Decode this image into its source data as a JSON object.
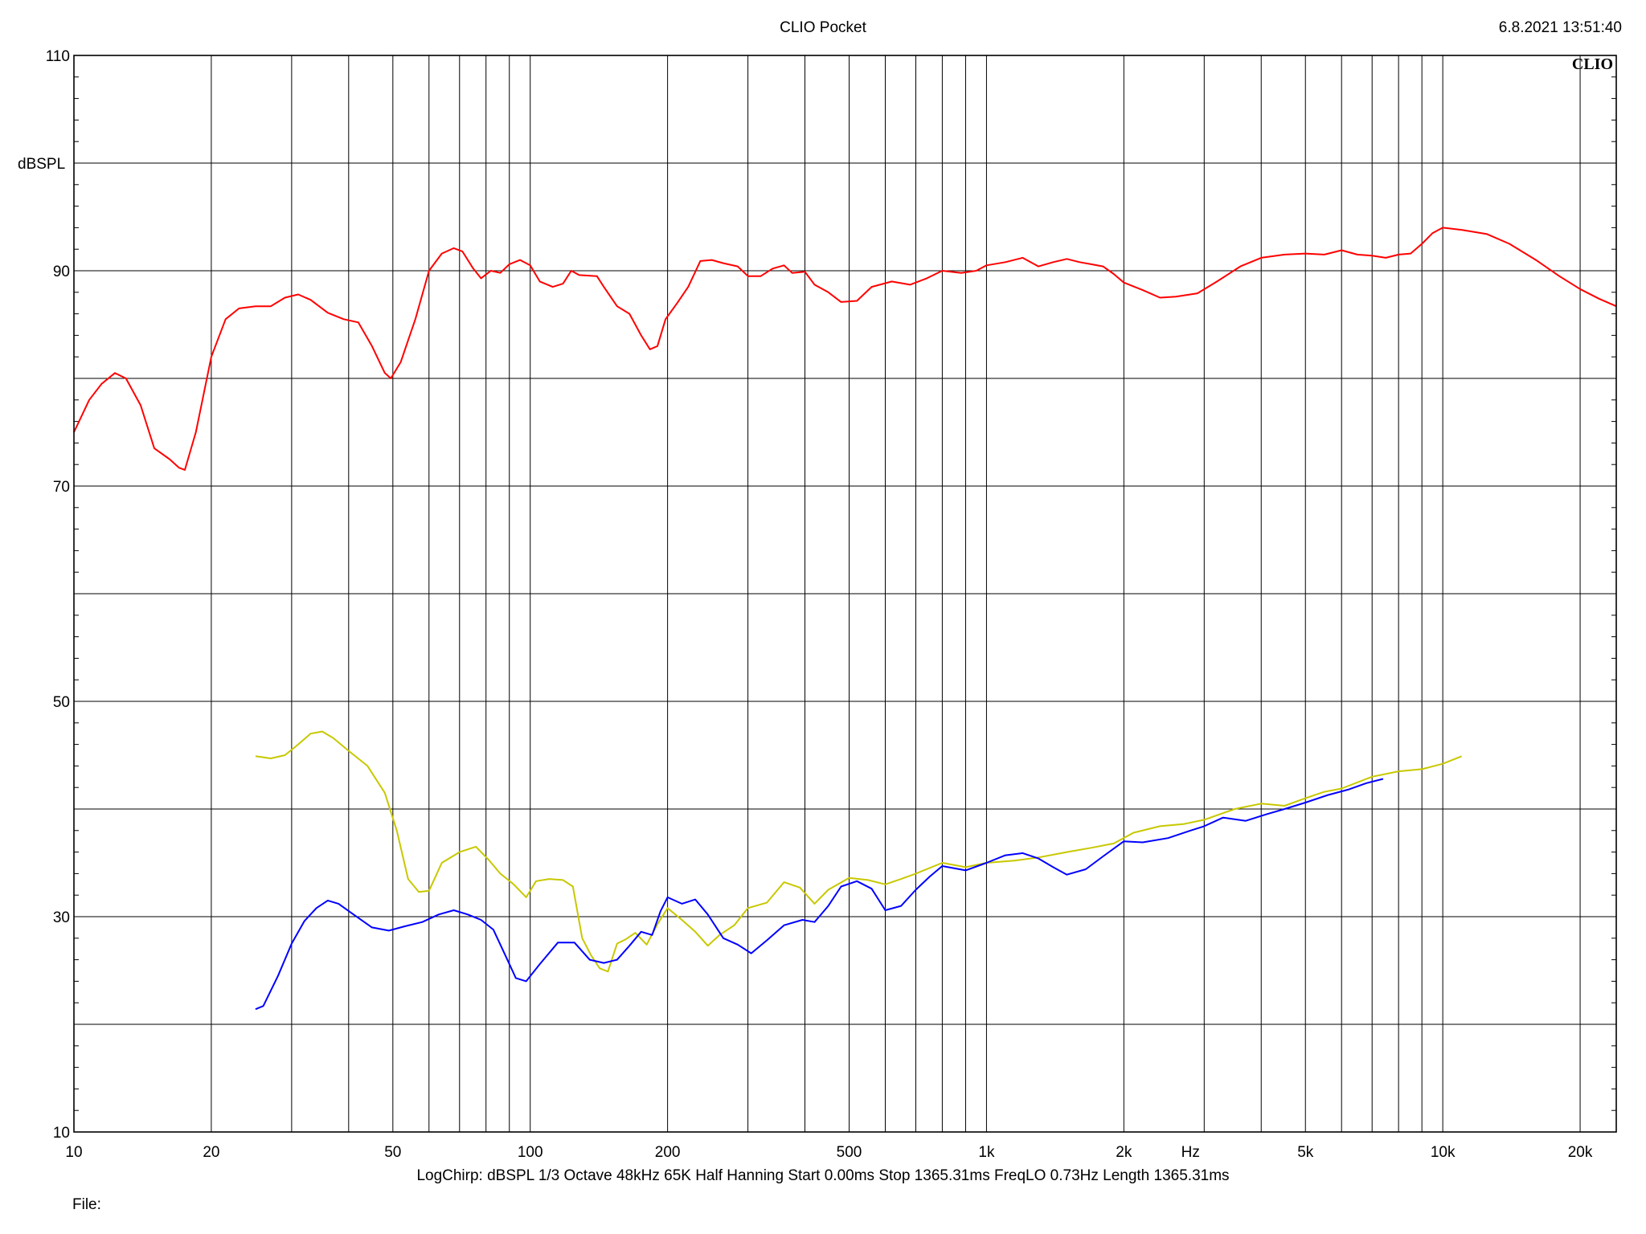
{
  "header": {
    "title": "CLIO Pocket",
    "timestamp": "6.8.2021 13:51:40"
  },
  "logo_text": "CLIO",
  "footer": {
    "settings": "LogChirp:  dBSPL   1/3 Octave   48kHz   65K   Half Hanning   Start 0.00ms   Stop 1365.31ms   FreqLO 0.73Hz   Length 1365.31ms",
    "file_label": "File:"
  },
  "chart_data": {
    "type": "line",
    "title": "CLIO Pocket",
    "xlabel": "Hz",
    "ylabel": "dBSPL",
    "x_scale": "log",
    "xlim": [
      10,
      24000
    ],
    "ylim": [
      10,
      110
    ],
    "y_ticks": [
      10,
      30,
      50,
      70,
      90,
      110
    ],
    "y_gridlines": [
      10,
      20,
      30,
      40,
      50,
      60,
      70,
      80,
      90,
      100,
      110
    ],
    "x_ticks": [
      {
        "value": 10,
        "label": "10"
      },
      {
        "value": 20,
        "label": "20"
      },
      {
        "value": 50,
        "label": "50"
      },
      {
        "value": 100,
        "label": "100"
      },
      {
        "value": 200,
        "label": "200"
      },
      {
        "value": 500,
        "label": "500"
      },
      {
        "value": 1000,
        "label": "1k"
      },
      {
        "value": 2000,
        "label": "2k"
      },
      {
        "value": 5000,
        "label": "5k"
      },
      {
        "value": 10000,
        "label": "10k"
      },
      {
        "value": 20000,
        "label": "20k"
      }
    ],
    "x_unit_label_position": 2800,
    "grid": true,
    "background": "#ffffff",
    "series": [
      {
        "color": "#ff0000",
        "points": [
          [
            10,
            75
          ],
          [
            10.8,
            78
          ],
          [
            11.5,
            79.5
          ],
          [
            12.3,
            80.5
          ],
          [
            13,
            80
          ],
          [
            14,
            77.5
          ],
          [
            15,
            73.5
          ],
          [
            16.2,
            72.5
          ],
          [
            17,
            71.7
          ],
          [
            17.5,
            71.5
          ],
          [
            18.5,
            75
          ],
          [
            20,
            82
          ],
          [
            21.5,
            85.5
          ],
          [
            23,
            86.5
          ],
          [
            25,
            86.7
          ],
          [
            27,
            86.7
          ],
          [
            29,
            87.5
          ],
          [
            31,
            87.8
          ],
          [
            33,
            87.3
          ],
          [
            36,
            86.1
          ],
          [
            39,
            85.5
          ],
          [
            42,
            85.2
          ],
          [
            45,
            83
          ],
          [
            48,
            80.5
          ],
          [
            49.5,
            80
          ],
          [
            52,
            81.5
          ],
          [
            56,
            85.5
          ],
          [
            60,
            90
          ],
          [
            64,
            91.6
          ],
          [
            68,
            92.1
          ],
          [
            71,
            91.8
          ],
          [
            75,
            90.2
          ],
          [
            78,
            89.3
          ],
          [
            82,
            90
          ],
          [
            86,
            89.8
          ],
          [
            90,
            90.6
          ],
          [
            95,
            91
          ],
          [
            100,
            90.5
          ],
          [
            105,
            89
          ],
          [
            112,
            88.5
          ],
          [
            118,
            88.8
          ],
          [
            123,
            90
          ],
          [
            128,
            89.6
          ],
          [
            140,
            89.5
          ],
          [
            145,
            88.5
          ],
          [
            155,
            86.7
          ],
          [
            165,
            86
          ],
          [
            175,
            84
          ],
          [
            183,
            82.7
          ],
          [
            190,
            83
          ],
          [
            198,
            85.5
          ],
          [
            210,
            87
          ],
          [
            222,
            88.5
          ],
          [
            236,
            90.9
          ],
          [
            250,
            91
          ],
          [
            265,
            90.7
          ],
          [
            285,
            90.4
          ],
          [
            300,
            89.5
          ],
          [
            320,
            89.5
          ],
          [
            340,
            90.2
          ],
          [
            360,
            90.5
          ],
          [
            375,
            89.8
          ],
          [
            400,
            89.9
          ],
          [
            420,
            88.7
          ],
          [
            450,
            88
          ],
          [
            480,
            87.1
          ],
          [
            520,
            87.2
          ],
          [
            560,
            88.5
          ],
          [
            620,
            89
          ],
          [
            680,
            88.7
          ],
          [
            740,
            89.3
          ],
          [
            800,
            90
          ],
          [
            880,
            89.8
          ],
          [
            950,
            90
          ],
          [
            1000,
            90.5
          ],
          [
            1100,
            90.8
          ],
          [
            1200,
            91.2
          ],
          [
            1300,
            90.4
          ],
          [
            1400,
            90.8
          ],
          [
            1500,
            91.1
          ],
          [
            1600,
            90.8
          ],
          [
            1700,
            90.6
          ],
          [
            1800,
            90.4
          ],
          [
            1900,
            89.7
          ],
          [
            2000,
            88.9
          ],
          [
            2200,
            88.2
          ],
          [
            2400,
            87.5
          ],
          [
            2600,
            87.6
          ],
          [
            2900,
            87.9
          ],
          [
            3200,
            89
          ],
          [
            3600,
            90.4
          ],
          [
            4000,
            91.2
          ],
          [
            4500,
            91.5
          ],
          [
            5000,
            91.6
          ],
          [
            5500,
            91.5
          ],
          [
            6000,
            91.9
          ],
          [
            6500,
            91.5
          ],
          [
            7000,
            91.4
          ],
          [
            7500,
            91.2
          ],
          [
            8000,
            91.5
          ],
          [
            8500,
            91.6
          ],
          [
            9000,
            92.5
          ],
          [
            9500,
            93.5
          ],
          [
            10000,
            94
          ],
          [
            11000,
            93.8
          ],
          [
            12500,
            93.4
          ],
          [
            14000,
            92.5
          ],
          [
            16000,
            91
          ],
          [
            18000,
            89.5
          ],
          [
            20000,
            88.3
          ],
          [
            22000,
            87.4
          ],
          [
            24000,
            86.7
          ]
        ]
      },
      {
        "color": "#c8c800",
        "points": [
          [
            25,
            44.9
          ],
          [
            27,
            44.7
          ],
          [
            29,
            45
          ],
          [
            31,
            46
          ],
          [
            33,
            47
          ],
          [
            35,
            47.2
          ],
          [
            37,
            46.6
          ],
          [
            40,
            45.4
          ],
          [
            44,
            44
          ],
          [
            48,
            41.5
          ],
          [
            51,
            38
          ],
          [
            54,
            33.5
          ],
          [
            57,
            32.3
          ],
          [
            60,
            32.4
          ],
          [
            64,
            35
          ],
          [
            70,
            36
          ],
          [
            76,
            36.5
          ],
          [
            81,
            35.3
          ],
          [
            86,
            34
          ],
          [
            92,
            33
          ],
          [
            98,
            31.8
          ],
          [
            103,
            33.3
          ],
          [
            110,
            33.5
          ],
          [
            118,
            33.4
          ],
          [
            124,
            32.8
          ],
          [
            130,
            28
          ],
          [
            136,
            26.4
          ],
          [
            142,
            25.2
          ],
          [
            148,
            24.9
          ],
          [
            155,
            27.5
          ],
          [
            162,
            27.9
          ],
          [
            170,
            28.5
          ],
          [
            180,
            27.4
          ],
          [
            190,
            29.3
          ],
          [
            200,
            30.8
          ],
          [
            215,
            29.7
          ],
          [
            230,
            28.6
          ],
          [
            245,
            27.3
          ],
          [
            260,
            28.3
          ],
          [
            280,
            29.2
          ],
          [
            300,
            30.8
          ],
          [
            330,
            31.3
          ],
          [
            360,
            33.2
          ],
          [
            390,
            32.7
          ],
          [
            420,
            31.2
          ],
          [
            450,
            32.5
          ],
          [
            500,
            33.6
          ],
          [
            550,
            33.4
          ],
          [
            600,
            33
          ],
          [
            650,
            33.5
          ],
          [
            700,
            34
          ],
          [
            800,
            35
          ],
          [
            900,
            34.6
          ],
          [
            1000,
            35
          ],
          [
            1150,
            35.2
          ],
          [
            1300,
            35.5
          ],
          [
            1500,
            36
          ],
          [
            1700,
            36.4
          ],
          [
            1900,
            36.8
          ],
          [
            2100,
            37.8
          ],
          [
            2400,
            38.4
          ],
          [
            2700,
            38.6
          ],
          [
            3000,
            39
          ],
          [
            3500,
            40
          ],
          [
            4000,
            40.5
          ],
          [
            4500,
            40.3
          ],
          [
            5000,
            41
          ],
          [
            5500,
            41.6
          ],
          [
            6000,
            41.9
          ],
          [
            7000,
            43
          ],
          [
            8000,
            43.5
          ],
          [
            9000,
            43.7
          ],
          [
            10000,
            44.2
          ],
          [
            11000,
            44.9
          ]
        ]
      },
      {
        "color": "#0000ff",
        "points": [
          [
            25,
            21.4
          ],
          [
            26,
            21.7
          ],
          [
            28,
            24.5
          ],
          [
            30,
            27.5
          ],
          [
            32,
            29.6
          ],
          [
            34,
            30.8
          ],
          [
            36,
            31.5
          ],
          [
            38,
            31.2
          ],
          [
            41,
            30.2
          ],
          [
            45,
            29
          ],
          [
            49,
            28.7
          ],
          [
            53,
            29.1
          ],
          [
            58,
            29.5
          ],
          [
            63,
            30.2
          ],
          [
            68,
            30.6
          ],
          [
            73,
            30.2
          ],
          [
            78,
            29.7
          ],
          [
            83,
            28.8
          ],
          [
            88,
            26.5
          ],
          [
            93,
            24.3
          ],
          [
            98,
            24
          ],
          [
            105,
            25.6
          ],
          [
            115,
            27.6
          ],
          [
            125,
            27.6
          ],
          [
            135,
            26
          ],
          [
            145,
            25.7
          ],
          [
            155,
            26
          ],
          [
            165,
            27.3
          ],
          [
            175,
            28.6
          ],
          [
            185,
            28.3
          ],
          [
            193,
            30.5
          ],
          [
            200,
            31.8
          ],
          [
            215,
            31.2
          ],
          [
            230,
            31.6
          ],
          [
            245,
            30.2
          ],
          [
            265,
            28
          ],
          [
            285,
            27.4
          ],
          [
            305,
            26.6
          ],
          [
            330,
            27.8
          ],
          [
            360,
            29.2
          ],
          [
            395,
            29.7
          ],
          [
            420,
            29.5
          ],
          [
            450,
            31
          ],
          [
            480,
            32.8
          ],
          [
            520,
            33.3
          ],
          [
            560,
            32.6
          ],
          [
            600,
            30.6
          ],
          [
            650,
            31
          ],
          [
            700,
            32.5
          ],
          [
            750,
            33.7
          ],
          [
            800,
            34.7
          ],
          [
            900,
            34.3
          ],
          [
            1000,
            35
          ],
          [
            1100,
            35.7
          ],
          [
            1200,
            35.9
          ],
          [
            1300,
            35.4
          ],
          [
            1400,
            34.6
          ],
          [
            1500,
            33.9
          ],
          [
            1650,
            34.4
          ],
          [
            1800,
            35.6
          ],
          [
            2000,
            37
          ],
          [
            2200,
            36.9
          ],
          [
            2500,
            37.3
          ],
          [
            2800,
            38
          ],
          [
            3000,
            38.4
          ],
          [
            3300,
            39.2
          ],
          [
            3700,
            38.9
          ],
          [
            4100,
            39.5
          ],
          [
            4500,
            40
          ],
          [
            5000,
            40.6
          ],
          [
            5600,
            41.3
          ],
          [
            6200,
            41.8
          ],
          [
            6800,
            42.4
          ],
          [
            7400,
            42.8
          ]
        ]
      }
    ]
  }
}
